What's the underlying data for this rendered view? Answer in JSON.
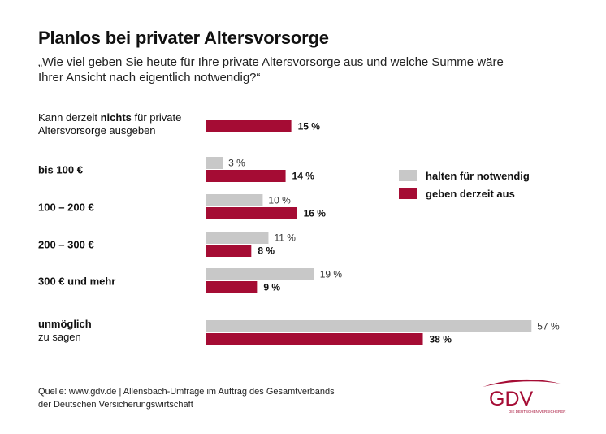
{
  "title": "Planlos bei privater Altersvorsorge",
  "subtitle": "„Wie viel geben Sie heute für Ihre private Altersvorsorge aus und welche Summe wäre Ihrer Ansicht nach eigentlich notwendig?“",
  "source": {
    "line1": "Quelle: www.gdv.de | Allensbach-Umfrage im Auftrag des Gesamtverbands",
    "line2": "der Deutschen Versicherungswirtschaft"
  },
  "logo": {
    "text": "GDV",
    "tagline": "DIE DEUTSCHEN VERSICHERER"
  },
  "colors": {
    "notwendig": "#c8c8c8",
    "ausgeben": "#a50c34",
    "logo": "#a50c34"
  },
  "chart_data": {
    "type": "bar",
    "orientation": "horizontal",
    "unit": "%",
    "categories": [
      {
        "lines": [
          [
            {
              "t": "Kann derzeit ",
              "b": false
            },
            {
              "t": "nichts",
              "b": true
            },
            {
              "t": " für private",
              "b": false
            }
          ],
          [
            {
              "t": "Altersvorsorge ausgeben",
              "b": false
            }
          ]
        ]
      },
      {
        "lines": [
          [
            {
              "t": "bis 100 €",
              "b": true
            }
          ]
        ]
      },
      {
        "lines": [
          [
            {
              "t": "100 – 200 €",
              "b": true
            }
          ]
        ]
      },
      {
        "lines": [
          [
            {
              "t": "200 – 300 €",
              "b": true
            }
          ]
        ]
      },
      {
        "lines": [
          [
            {
              "t": "300 € und mehr",
              "b": true
            }
          ]
        ]
      },
      {
        "lines": [
          [
            {
              "t": "unmöglich",
              "b": true
            }
          ],
          [
            {
              "t": "zu sagen",
              "b": false
            }
          ]
        ]
      }
    ],
    "series": [
      {
        "name": "halten für notwendig",
        "key": "notwendig",
        "values": [
          null,
          3,
          10,
          11,
          19,
          57
        ],
        "labels": [
          "",
          "3 %",
          "10 %",
          "11 %",
          "19 %",
          "57 %"
        ]
      },
      {
        "name": "geben derzeit aus",
        "key": "ausgeben",
        "values": [
          15,
          14,
          16,
          8,
          9,
          38
        ],
        "labels": [
          "15 %",
          "14 %",
          "16 %",
          "8 %",
          "9 %",
          "38 %"
        ]
      }
    ],
    "legend": "right"
  }
}
